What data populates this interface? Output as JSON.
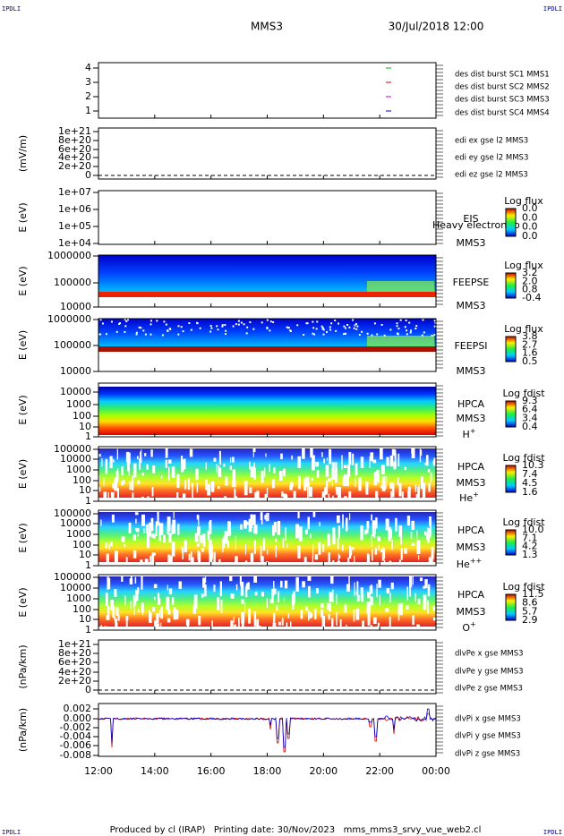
{
  "header": {
    "corner_left": "IPDLI",
    "corner_right": "IPDLI",
    "mission": "MMS3",
    "datetime": "30/Jul/2018 12:00"
  },
  "panels": [
    {
      "yticks": [
        "4",
        "3",
        "2",
        "1"
      ],
      "legend": [
        {
          "text": "des dist burst SC1 MMS1",
          "color": "#0000cc"
        },
        {
          "text": "des dist burst SC2 MMS2",
          "color": "#cc00cc"
        },
        {
          "text": "des dist burst SC3 MMS3",
          "color": "#cc0000"
        },
        {
          "text": "des dist burst SC4 MMS4",
          "color": "#00bb00"
        }
      ]
    },
    {
      "ylabel": "(mV/m)",
      "yticks": [
        "1e+21",
        "8e+20",
        "6e+20",
        "4e+20",
        "2e+20",
        "0"
      ],
      "legend": [
        {
          "text": "edi ex gse l2 MMS3",
          "color": "#cc0000"
        },
        {
          "text": "edi ey gse l2 MMS3",
          "color": "#00bb00"
        },
        {
          "text": "edi ez gse l2 MMS3",
          "color": "#0000cc"
        }
      ]
    },
    {
      "ylabel": "E (eV)",
      "yticks": [
        "1e+07",
        "1e+06",
        "1e+05",
        "1e+04"
      ],
      "instrument": [
        "EIS",
        "MMS3"
      ],
      "note": "Heavy electron to",
      "colorbar": {
        "title": "Log flux",
        "ticks": [
          "0.0",
          "0.0",
          "0.0",
          "0.0"
        ]
      }
    },
    {
      "ylabel": "E (eV)",
      "yticks": [
        "1000000",
        "100000",
        "10000"
      ],
      "instrument": [
        "FEEPSE",
        "MMS3"
      ],
      "colorbar": {
        "title": "Log flux",
        "ticks": [
          "3.2",
          "2.0",
          "0.8",
          "-0.4"
        ]
      }
    },
    {
      "ylabel": "E (eV)",
      "yticks": [
        "1000000",
        "100000",
        "10000"
      ],
      "instrument": [
        "FEEPSI",
        "MMS3"
      ],
      "colorbar": {
        "title": "Log flux",
        "ticks": [
          "3.8",
          "2.7",
          "1.6",
          "0.5"
        ]
      }
    },
    {
      "ylabel": "E (eV)",
      "yticks": [
        "10000",
        "1000",
        "100",
        "10",
        "1"
      ],
      "instrument": [
        "HPCA",
        "MMS3"
      ],
      "species": {
        "base": "H",
        "sup": "+"
      },
      "colorbar": {
        "title": "Log fdist",
        "ticks": [
          "9.3",
          "6.4",
          "3.4",
          "0.4"
        ]
      }
    },
    {
      "ylabel": "E (eV)",
      "yticks": [
        "100000",
        "10000",
        "1000",
        "100",
        "10",
        "1"
      ],
      "instrument": [
        "HPCA",
        "MMS3"
      ],
      "species": {
        "base": "He",
        "sup": "+"
      },
      "colorbar": {
        "title": "Log fdist",
        "ticks": [
          "10.3",
          "7.4",
          "4.5",
          "1.6"
        ]
      }
    },
    {
      "ylabel": "E (eV)",
      "yticks": [
        "100000",
        "10000",
        "1000",
        "100",
        "10",
        "1"
      ],
      "instrument": [
        "HPCA",
        "MMS3"
      ],
      "species": {
        "base": "He",
        "sup": "++"
      },
      "colorbar": {
        "title": "Log fdist",
        "ticks": [
          "10.0",
          "7.1",
          "4.2",
          "1.3"
        ]
      }
    },
    {
      "ylabel": "E (eV)",
      "yticks": [
        "100000",
        "10000",
        "1000",
        "100",
        "10",
        "1"
      ],
      "instrument": [
        "HPCA",
        "MMS3"
      ],
      "species": {
        "base": "O",
        "sup": "+"
      },
      "colorbar": {
        "title": "Log fdist",
        "ticks": [
          "11.5",
          "8.6",
          "5.7",
          "2.9"
        ]
      }
    },
    {
      "ylabel": "(nPa/km)",
      "yticks": [
        "1e+21",
        "8e+20",
        "6e+20",
        "4e+20",
        "2e+20",
        "0"
      ],
      "legend": [
        {
          "text": "dlvPe x gse MMS3",
          "color": "#cc0000"
        },
        {
          "text": "dlvPe y gse MMS3",
          "color": "#00bb00"
        },
        {
          "text": "dlvPe z gse MMS3",
          "color": "#0000cc"
        }
      ]
    },
    {
      "ylabel": "(nPa/km)",
      "yticks": [
        "0.002",
        "0.000",
        "-0.002",
        "-0.004",
        "-0.006",
        "-0.008"
      ],
      "legend": [
        {
          "text": "dlvPi x gse MMS3",
          "color": "#cc0000"
        },
        {
          "text": "dlvPi y gse MMS3",
          "color": "#00bb00"
        },
        {
          "text": "dlvPi z gse MMS3",
          "color": "#0000cc"
        }
      ]
    }
  ],
  "xticks": [
    "12:00",
    "14:00",
    "16:00",
    "18:00",
    "20:00",
    "22:00",
    "00:00"
  ],
  "footer": {
    "text": "Produced by cl (IRAP)   Printing date: 30/Nov/2023   mms_mms3_srvy_vue_web2.cl",
    "corner_left": "IPDLI",
    "corner_right": "IPDLI"
  }
}
